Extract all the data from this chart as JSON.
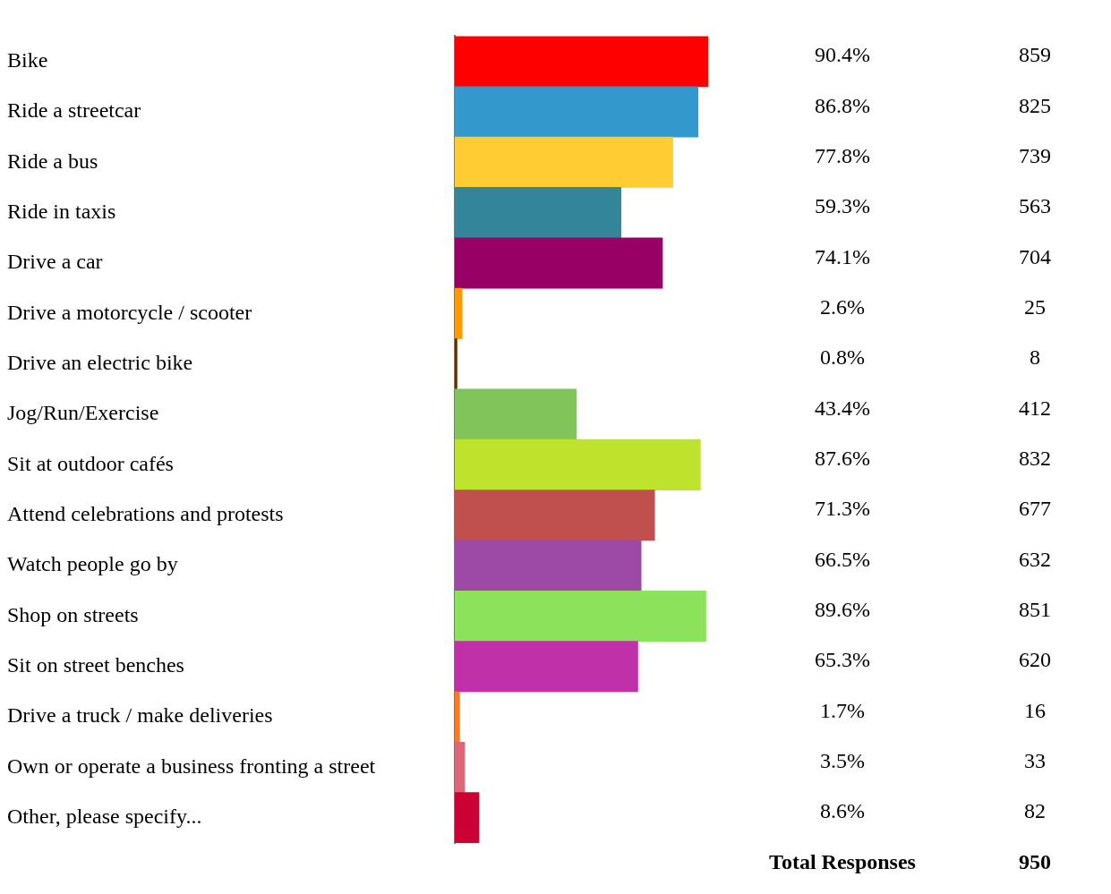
{
  "chart_data": {
    "type": "bar",
    "orientation": "horizontal",
    "categories": [
      "Bike",
      "Ride a streetcar",
      "Ride a bus",
      "Ride in taxis",
      "Drive a car",
      "Drive a motorcycle / scooter",
      "Drive an electric bike",
      "Jog/Run/Exercise",
      "Sit at outdoor cafés",
      "Attend celebrations and protests",
      "Watch people go by",
      "Shop on streets",
      "Sit on street benches",
      "Drive a truck / make deliveries",
      "Own or operate a business fronting a street",
      "Other, please specify..."
    ],
    "values": [
      90.4,
      86.8,
      77.8,
      59.3,
      74.1,
      2.6,
      0.8,
      43.4,
      87.6,
      71.3,
      66.5,
      89.6,
      65.3,
      1.7,
      3.5,
      8.6
    ],
    "value_labels": [
      "90.4%",
      "86.8%",
      "77.8%",
      "59.3%",
      "74.1%",
      "2.6%",
      "0.8%",
      "43.4%",
      "87.6%",
      "71.3%",
      "66.5%",
      "89.6%",
      "65.3%",
      "1.7%",
      "3.5%",
      "8.6%"
    ],
    "colors": [
      "#ff0000",
      "#3399cc",
      "#ffcc33",
      "#338599",
      "#990066",
      "#ff9900",
      "#663300",
      "#80c45a",
      "#bfe22d",
      "#c0504d",
      "#9c4aa5",
      "#8ce25a",
      "#c030a8",
      "#ff7722",
      "#dd6677",
      "#cc0033"
    ],
    "grid": false,
    "legend": false,
    "annotations": [
      "859",
      "825",
      "739",
      "563",
      "704",
      "25",
      "8",
      "412",
      "832",
      "677",
      "632",
      "851",
      "620",
      "16",
      "33",
      "82",
      "Total Responses",
      "950"
    ]
  }
}
